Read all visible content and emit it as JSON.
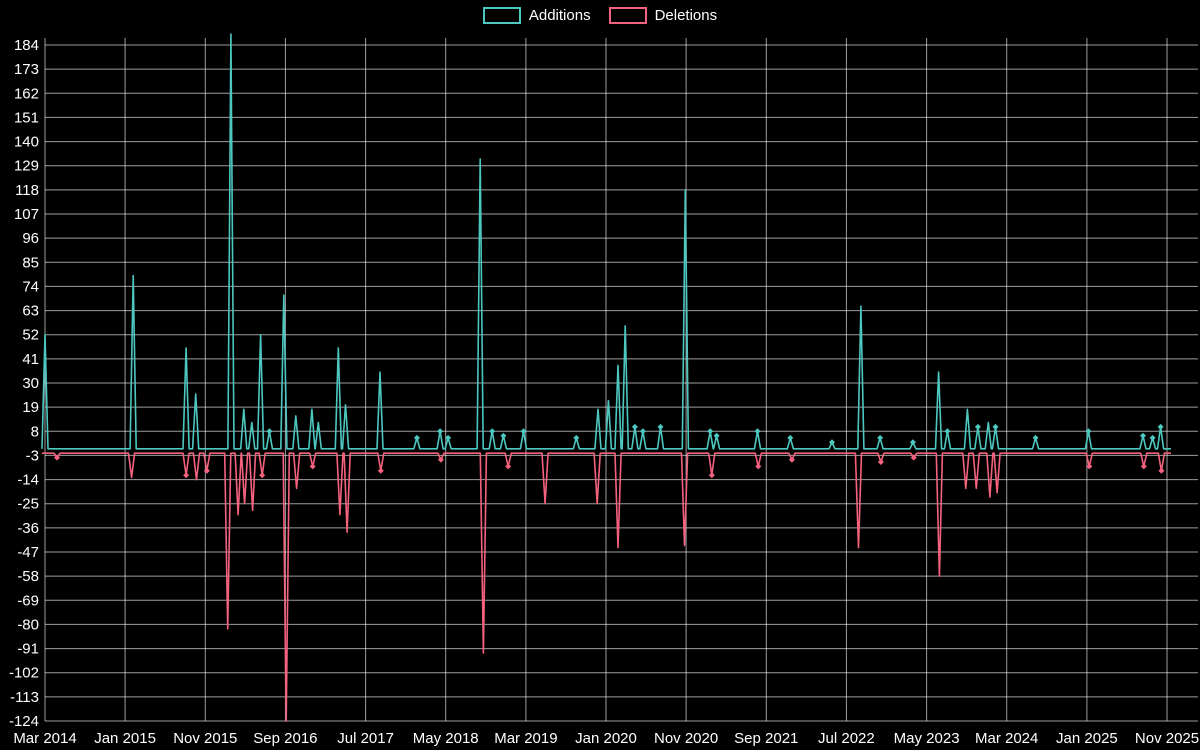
{
  "chart_data": {
    "type": "line",
    "title": "",
    "legend_position": "top-center",
    "background": "#000000",
    "grid": true,
    "axis_text_color": "#ffffff",
    "x_tick_labels": [
      "Mar 2014",
      "Jan 2015",
      "Nov 2015",
      "Sep 2016",
      "Jul 2017",
      "May 2018",
      "Mar 2019",
      "Jan 2020",
      "Nov 2020",
      "Sep 2021",
      "Jul 2022",
      "May 2023",
      "Mar 2024",
      "Jan 2025",
      "Nov 2025"
    ],
    "x_tick_months": [
      0,
      10,
      20,
      30,
      40,
      50,
      60,
      70,
      80,
      90,
      100,
      110,
      120,
      130,
      140
    ],
    "x_months_total": 140,
    "y_ticks": [
      184,
      173,
      162,
      151,
      140,
      129,
      118,
      107,
      96,
      85,
      74,
      63,
      52,
      41,
      30,
      19,
      8,
      -3,
      -14,
      -25,
      -36,
      -47,
      -58,
      -69,
      -80,
      -91,
      -102,
      -113,
      -124
    ],
    "ylim": [
      -125,
      189
    ],
    "series": [
      {
        "name": "Additions",
        "color": "#4dc8c0",
        "baseline": 0,
        "points": [
          [
            0,
            52
          ],
          [
            11,
            79
          ],
          [
            17.6,
            46
          ],
          [
            18.8,
            25
          ],
          [
            23.2,
            189
          ],
          [
            24.8,
            18
          ],
          [
            25.8,
            12
          ],
          [
            26.9,
            52
          ],
          [
            28,
            8
          ],
          [
            29.8,
            70
          ],
          [
            31.3,
            15
          ],
          [
            33.3,
            18
          ],
          [
            34.1,
            12
          ],
          [
            36.6,
            46
          ],
          [
            37.5,
            20
          ],
          [
            41.8,
            35
          ],
          [
            46.4,
            5
          ],
          [
            49.3,
            8
          ],
          [
            50.3,
            5
          ],
          [
            54.3,
            132
          ],
          [
            55.8,
            8
          ],
          [
            57.2,
            6
          ],
          [
            59.7,
            8
          ],
          [
            66.3,
            5
          ],
          [
            69,
            18
          ],
          [
            70.3,
            22
          ],
          [
            71.5,
            38
          ],
          [
            72.4,
            56
          ],
          [
            73.6,
            10
          ],
          [
            74.6,
            8
          ],
          [
            76.8,
            10
          ],
          [
            79.9,
            118
          ],
          [
            83,
            8
          ],
          [
            83.8,
            6
          ],
          [
            88.9,
            8
          ],
          [
            93,
            5
          ],
          [
            98.2,
            3
          ],
          [
            101.8,
            65
          ],
          [
            104.2,
            5
          ],
          [
            108.3,
            3
          ],
          [
            111.5,
            35
          ],
          [
            112.6,
            8
          ],
          [
            115.1,
            18
          ],
          [
            116.4,
            10
          ],
          [
            117.7,
            12
          ],
          [
            118.6,
            10
          ],
          [
            123.6,
            5
          ],
          [
            130.2,
            8
          ],
          [
            137,
            6
          ],
          [
            138.2,
            5
          ],
          [
            139.2,
            10
          ]
        ]
      },
      {
        "name": "Deletions",
        "color": "#f4627d",
        "baseline": -2,
        "points": [
          [
            1.5,
            -4
          ],
          [
            10.8,
            -13
          ],
          [
            17.6,
            -12
          ],
          [
            18.9,
            -14
          ],
          [
            20.2,
            -10
          ],
          [
            22.8,
            -82
          ],
          [
            24.1,
            -30
          ],
          [
            24.9,
            -25
          ],
          [
            25.9,
            -28
          ],
          [
            27.1,
            -12
          ],
          [
            30.1,
            -124
          ],
          [
            31.4,
            -18
          ],
          [
            33.4,
            -8
          ],
          [
            36.8,
            -30
          ],
          [
            37.7,
            -38
          ],
          [
            41.9,
            -10
          ],
          [
            49.4,
            -5
          ],
          [
            54.7,
            -93
          ],
          [
            57.8,
            -8
          ],
          [
            62.4,
            -25
          ],
          [
            68.9,
            -25
          ],
          [
            71.5,
            -45
          ],
          [
            79.8,
            -44
          ],
          [
            83.2,
            -12
          ],
          [
            89,
            -8
          ],
          [
            93.2,
            -5
          ],
          [
            101.5,
            -45
          ],
          [
            104.3,
            -6
          ],
          [
            108.4,
            -4
          ],
          [
            111.6,
            -58
          ],
          [
            114.9,
            -18
          ],
          [
            116.2,
            -18
          ],
          [
            117.9,
            -22
          ],
          [
            118.8,
            -20
          ],
          [
            130.3,
            -8
          ],
          [
            137.1,
            -8
          ],
          [
            139.3,
            -10
          ]
        ]
      }
    ]
  }
}
